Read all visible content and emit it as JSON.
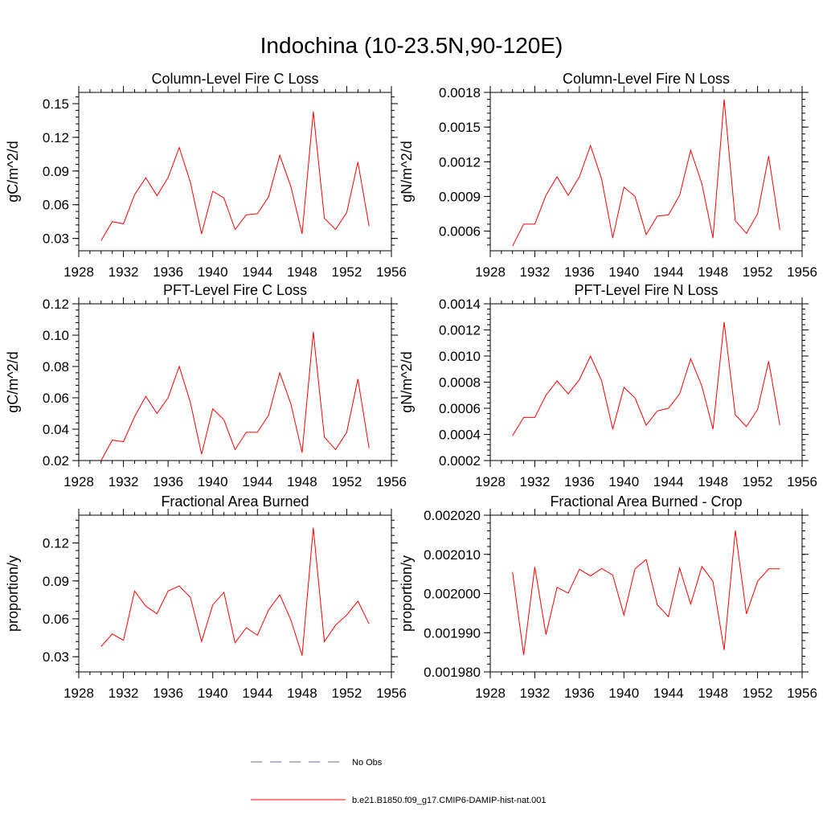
{
  "figure": {
    "title": "Indochina (10-23.5N,90-120E)"
  },
  "legend": {
    "entries": [
      {
        "label": "No Obs",
        "color": "#6a6aa8",
        "style": "dashed"
      },
      {
        "label": "b.e21.B1850.f09_g17.CMIP6-DAMIP-hist-nat.001",
        "color": "#ff0000",
        "style": "solid"
      }
    ]
  },
  "chart_data": [
    {
      "type": "line",
      "title": "Column-Level Fire C Loss",
      "xlabel": "",
      "ylabel": "gC/m^2/d",
      "xlim": [
        1928,
        1956
      ],
      "ylim": [
        0.019,
        0.16
      ],
      "xticks": [
        "1928",
        "1932",
        "1936",
        "1940",
        "1944",
        "1948",
        "1952",
        "1956"
      ],
      "yticks": [
        "0.03",
        "0.06",
        "0.09",
        "0.12",
        "0.15"
      ],
      "ytick_values": [
        0.03,
        0.06,
        0.09,
        0.12,
        0.15
      ],
      "series": [
        {
          "color": "#ff0000",
          "x": [
            1930,
            1931,
            1932,
            1933,
            1934,
            1935,
            1936,
            1937,
            1938,
            1939,
            1940,
            1941,
            1942,
            1943,
            1944,
            1945,
            1946,
            1947,
            1948,
            1949,
            1950,
            1951,
            1952,
            1953,
            1954
          ],
          "values": [
            0.028,
            0.045,
            0.043,
            0.069,
            0.084,
            0.068,
            0.084,
            0.111,
            0.08,
            0.034,
            0.072,
            0.066,
            0.038,
            0.051,
            0.052,
            0.067,
            0.104,
            0.076,
            0.034,
            0.143,
            0.048,
            0.038,
            0.053,
            0.098,
            0.041
          ]
        }
      ]
    },
    {
      "type": "line",
      "title": "Column-Level Fire N Loss",
      "xlabel": "",
      "ylabel": "gN/m^2/d",
      "xlim": [
        1928,
        1956
      ],
      "ylim": [
        0.00043,
        0.0018
      ],
      "xticks": [
        "1928",
        "1932",
        "1936",
        "1940",
        "1944",
        "1948",
        "1952",
        "1956"
      ],
      "yticks": [
        "0.0006",
        "0.0009",
        "0.0012",
        "0.0015",
        "0.0018"
      ],
      "ytick_values": [
        0.0006,
        0.0009,
        0.0012,
        0.0015,
        0.0018
      ],
      "series": [
        {
          "color": "#ff0000",
          "x": [
            1930,
            1931,
            1932,
            1933,
            1934,
            1935,
            1936,
            1937,
            1938,
            1939,
            1940,
            1941,
            1942,
            1943,
            1944,
            1945,
            1946,
            1947,
            1948,
            1949,
            1950,
            1951,
            1952,
            1953,
            1954
          ],
          "values": [
            0.00047,
            0.00066,
            0.00066,
            0.00091,
            0.00107,
            0.00091,
            0.00107,
            0.00134,
            0.00105,
            0.00054,
            0.00098,
            0.0009,
            0.00057,
            0.00073,
            0.00074,
            0.00091,
            0.0013,
            0.00101,
            0.00054,
            0.00174,
            0.00069,
            0.00058,
            0.00075,
            0.00125,
            0.00061
          ]
        }
      ]
    },
    {
      "type": "line",
      "title": "PFT-Level Fire C Loss",
      "xlabel": "",
      "ylabel": "gC/m^2/d",
      "xlim": [
        1928,
        1956
      ],
      "ylim": [
        0.02,
        0.12
      ],
      "xticks": [
        "1928",
        "1932",
        "1936",
        "1940",
        "1944",
        "1948",
        "1952",
        "1956"
      ],
      "yticks": [
        "0.02",
        "0.04",
        "0.06",
        "0.08",
        "0.10",
        "0.12"
      ],
      "ytick_values": [
        0.02,
        0.04,
        0.06,
        0.08,
        0.1,
        0.12
      ],
      "series": [
        {
          "color": "#ff0000",
          "x": [
            1930,
            1931,
            1932,
            1933,
            1934,
            1935,
            1936,
            1937,
            1938,
            1939,
            1940,
            1941,
            1942,
            1943,
            1944,
            1945,
            1946,
            1947,
            1948,
            1949,
            1950,
            1951,
            1952,
            1953,
            1954
          ],
          "values": [
            0.02,
            0.033,
            0.032,
            0.048,
            0.061,
            0.05,
            0.06,
            0.08,
            0.057,
            0.024,
            0.053,
            0.046,
            0.027,
            0.038,
            0.038,
            0.049,
            0.076,
            0.056,
            0.025,
            0.102,
            0.035,
            0.027,
            0.038,
            0.072,
            0.028
          ]
        }
      ]
    },
    {
      "type": "line",
      "title": "PFT-Level Fire N Loss",
      "xlabel": "",
      "ylabel": "gN/m^2/d",
      "xlim": [
        1928,
        1956
      ],
      "ylim": [
        0.0002,
        0.0014
      ],
      "xticks": [
        "1928",
        "1932",
        "1936",
        "1940",
        "1944",
        "1948",
        "1952",
        "1956"
      ],
      "yticks": [
        "0.0002",
        "0.0004",
        "0.0006",
        "0.0008",
        "0.0010",
        "0.0012",
        "0.0014"
      ],
      "ytick_values": [
        0.0002,
        0.0004,
        0.0006,
        0.0008,
        0.001,
        0.0012,
        0.0014
      ],
      "series": [
        {
          "color": "#ff0000",
          "x": [
            1930,
            1931,
            1932,
            1933,
            1934,
            1935,
            1936,
            1937,
            1938,
            1939,
            1940,
            1941,
            1942,
            1943,
            1944,
            1945,
            1946,
            1947,
            1948,
            1949,
            1950,
            1951,
            1952,
            1953,
            1954
          ],
          "values": [
            0.00039,
            0.00053,
            0.00053,
            0.0007,
            0.00081,
            0.00071,
            0.00082,
            0.001,
            0.00081,
            0.00044,
            0.00076,
            0.00068,
            0.00047,
            0.00058,
            0.0006,
            0.00071,
            0.00098,
            0.00077,
            0.00044,
            0.00126,
            0.00055,
            0.00046,
            0.00059,
            0.00096,
            0.00047
          ]
        }
      ]
    },
    {
      "type": "line",
      "title": "Fractional Area Burned",
      "xlabel": "",
      "ylabel": "proportion/y",
      "xlim": [
        1928,
        1956
      ],
      "ylim": [
        0.018,
        0.142
      ],
      "xticks": [
        "1928",
        "1932",
        "1936",
        "1940",
        "1944",
        "1948",
        "1952",
        "1956"
      ],
      "yticks": [
        "0.03",
        "0.06",
        "0.09",
        "0.12"
      ],
      "ytick_values": [
        0.03,
        0.06,
        0.09,
        0.12
      ],
      "series": [
        {
          "color": "#ff0000",
          "x": [
            1930,
            1931,
            1932,
            1933,
            1934,
            1935,
            1936,
            1937,
            1938,
            1939,
            1940,
            1941,
            1942,
            1943,
            1944,
            1945,
            1946,
            1947,
            1948,
            1949,
            1950,
            1951,
            1952,
            1953,
            1954
          ],
          "values": [
            0.038,
            0.048,
            0.043,
            0.082,
            0.07,
            0.064,
            0.082,
            0.086,
            0.077,
            0.042,
            0.071,
            0.081,
            0.041,
            0.053,
            0.047,
            0.067,
            0.079,
            0.059,
            0.031,
            0.132,
            0.042,
            0.055,
            0.063,
            0.074,
            0.056
          ]
        }
      ]
    },
    {
      "type": "line",
      "title": "Fractional Area Burned - Crop",
      "xlabel": "",
      "ylabel": "proportion/y",
      "xlim": [
        1928,
        1956
      ],
      "ylim": [
        0.00198,
        0.00202
      ],
      "xticks": [
        "1928",
        "1932",
        "1936",
        "1940",
        "1944",
        "1948",
        "1952",
        "1956"
      ],
      "yticks": [
        "0.001980",
        "0.001990",
        "0.002000",
        "0.002010",
        "0.002020"
      ],
      "ytick_values": [
        0.00198,
        0.00199,
        0.002,
        0.00201,
        0.00202
      ],
      "series": [
        {
          "color": "#ff0000",
          "x": [
            1930,
            1931,
            1932,
            1933,
            1934,
            1935,
            1936,
            1937,
            1938,
            1939,
            1940,
            1941,
            1942,
            1943,
            1944,
            1945,
            1946,
            1947,
            1948,
            1949,
            1950,
            1951,
            1952,
            1953,
            1954
          ],
          "values": [
            0.0020055,
            0.0019843,
            0.0020068,
            0.0019895,
            0.0020016,
            0.0020001,
            0.0020062,
            0.0020045,
            0.0020064,
            0.0020047,
            0.0019945,
            0.0020063,
            0.0020087,
            0.0019971,
            0.0019941,
            0.0020065,
            0.0019973,
            0.0020069,
            0.0020031,
            0.0019856,
            0.0020161,
            0.0019948,
            0.0020031,
            0.0020063,
            0.0020063
          ]
        }
      ]
    }
  ]
}
